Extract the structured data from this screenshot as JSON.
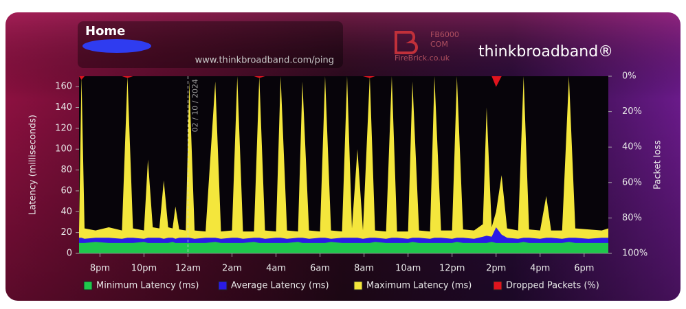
{
  "chart_data": {
    "type": "area",
    "title": "Home",
    "subtitle": "www.thinkbroadband.com/ping",
    "logos": {
      "firebrick": [
        "FB6000",
        "COM",
        "FireBrick.co.uk"
      ],
      "brand": "thinkbroadband®"
    },
    "annotations": [
      {
        "text": "02 / 10 / 2024",
        "x": 24
      }
    ],
    "y_label": "Latency (milliseconds)",
    "y2_label": "Packet loss",
    "x": [
      19.05,
      19.16,
      19.3,
      19.8,
      20.4,
      21.0,
      21.25,
      21.5,
      22.0,
      22.18,
      22.4,
      22.7,
      22.9,
      23.1,
      23.3,
      23.43,
      23.6,
      23.9,
      24.06,
      24.3,
      24.8,
      25.24,
      25.5,
      26.0,
      26.24,
      26.5,
      27.0,
      27.24,
      27.5,
      28.0,
      28.21,
      28.5,
      29.0,
      29.2,
      29.5,
      30.0,
      30.23,
      30.5,
      31.0,
      31.23,
      31.45,
      31.7,
      31.95,
      32.26,
      32.5,
      33.0,
      33.26,
      33.5,
      34.0,
      34.2,
      34.5,
      35.0,
      35.2,
      35.5,
      36.0,
      36.22,
      36.5,
      37.0,
      37.4,
      37.57,
      37.8,
      38.0,
      38.25,
      38.5,
      39.0,
      39.25,
      39.5,
      40.0,
      40.28,
      40.5,
      41.0,
      41.31,
      41.6,
      42.2,
      42.8,
      43.1
    ],
    "series": [
      {
        "name": "Minimum Latency (ms)",
        "color": "#1fc84c",
        "values": [
          10,
          10,
          10,
          11,
          10,
          10,
          10,
          10,
          11,
          10,
          10,
          10,
          10,
          10,
          11,
          10,
          10,
          10,
          10,
          10,
          10,
          11,
          10,
          10,
          10,
          10,
          11,
          10,
          10,
          10,
          10,
          10,
          11,
          10,
          10,
          10,
          10,
          11,
          10,
          10,
          10,
          10,
          10,
          10,
          11,
          10,
          10,
          10,
          10,
          11,
          10,
          10,
          10,
          10,
          10,
          11,
          10,
          10,
          10,
          10,
          11,
          10,
          10,
          10,
          10,
          11,
          10,
          10,
          10,
          10,
          10,
          11,
          10,
          10,
          10,
          10
        ]
      },
      {
        "name": "Average Latency (ms)",
        "color": "#2b1be6",
        "values": [
          15,
          15,
          14,
          15,
          15,
          14,
          15,
          15,
          14,
          15,
          15,
          15,
          14,
          15,
          15,
          14,
          15,
          15,
          15,
          14,
          15,
          15,
          14,
          15,
          15,
          14,
          15,
          15,
          14,
          15,
          15,
          14,
          15,
          15,
          14,
          15,
          15,
          14,
          15,
          15,
          15,
          15,
          14,
          15,
          15,
          14,
          15,
          15,
          14,
          15,
          15,
          14,
          15,
          15,
          14,
          15,
          15,
          14,
          16,
          17,
          16,
          25,
          18,
          15,
          14,
          15,
          15,
          14,
          15,
          15,
          14,
          15,
          15,
          14,
          15,
          15
        ]
      },
      {
        "name": "Maximum Latency (ms)",
        "color": "#f4e63c",
        "values": [
          22,
          170,
          24,
          22,
          25,
          22,
          170,
          24,
          22,
          90,
          25,
          24,
          70,
          25,
          24,
          45,
          23,
          22,
          165,
          22,
          21,
          165,
          21,
          22,
          170,
          21,
          21,
          170,
          22,
          21,
          170,
          22,
          21,
          165,
          22,
          21,
          170,
          22,
          21,
          170,
          24,
          100,
          22,
          170,
          22,
          21,
          170,
          21,
          21,
          165,
          22,
          21,
          170,
          22,
          22,
          170,
          23,
          22,
          28,
          140,
          25,
          40,
          75,
          24,
          22,
          170,
          23,
          22,
          55,
          22,
          22,
          170,
          24,
          23,
          22,
          24
        ]
      },
      {
        "name": "Dropped Packets (%)",
        "color": "#e0141e",
        "axis": "y2",
        "values": [
          0,
          2,
          0,
          0,
          0,
          0,
          1,
          0,
          0,
          0,
          0,
          0,
          0,
          0,
          0,
          0,
          0,
          0,
          0,
          0,
          0,
          0,
          0,
          0,
          0,
          0,
          0,
          1,
          0,
          0,
          0,
          0,
          0,
          0,
          0,
          0,
          0,
          0,
          0,
          0,
          0,
          0,
          0,
          1,
          0,
          0,
          0,
          0,
          0,
          0,
          0,
          0,
          0,
          0,
          0,
          0,
          0,
          0,
          0,
          0,
          0,
          6,
          0,
          0,
          0,
          0,
          0,
          0,
          0,
          0,
          0,
          0,
          0,
          0,
          0,
          0
        ]
      }
    ],
    "xlim": [
      19.05,
      43.1
    ],
    "xticks": [
      {
        "value": 20,
        "label": "8pm"
      },
      {
        "value": 22,
        "label": "10pm"
      },
      {
        "value": 24,
        "label": "12am"
      },
      {
        "value": 26,
        "label": "2am"
      },
      {
        "value": 28,
        "label": "4am"
      },
      {
        "value": 30,
        "label": "6am"
      },
      {
        "value": 32,
        "label": "8am"
      },
      {
        "value": 34,
        "label": "10am"
      },
      {
        "value": 36,
        "label": "12pm"
      },
      {
        "value": 38,
        "label": "2pm"
      },
      {
        "value": 40,
        "label": "4pm"
      },
      {
        "value": 42,
        "label": "6pm"
      }
    ],
    "ylim": [
      0,
      170
    ],
    "yticks": [
      0,
      20,
      40,
      60,
      80,
      100,
      120,
      140,
      160
    ],
    "y2lim": [
      100,
      0
    ],
    "y2ticks": [
      {
        "value": 0,
        "label": "0%"
      },
      {
        "value": 20,
        "label": "20%"
      },
      {
        "value": 40,
        "label": "40%"
      },
      {
        "value": 60,
        "label": "60%"
      },
      {
        "value": 80,
        "label": "80%"
      },
      {
        "value": 100,
        "label": "100%"
      }
    ],
    "grid": false,
    "legend": "bottom"
  }
}
